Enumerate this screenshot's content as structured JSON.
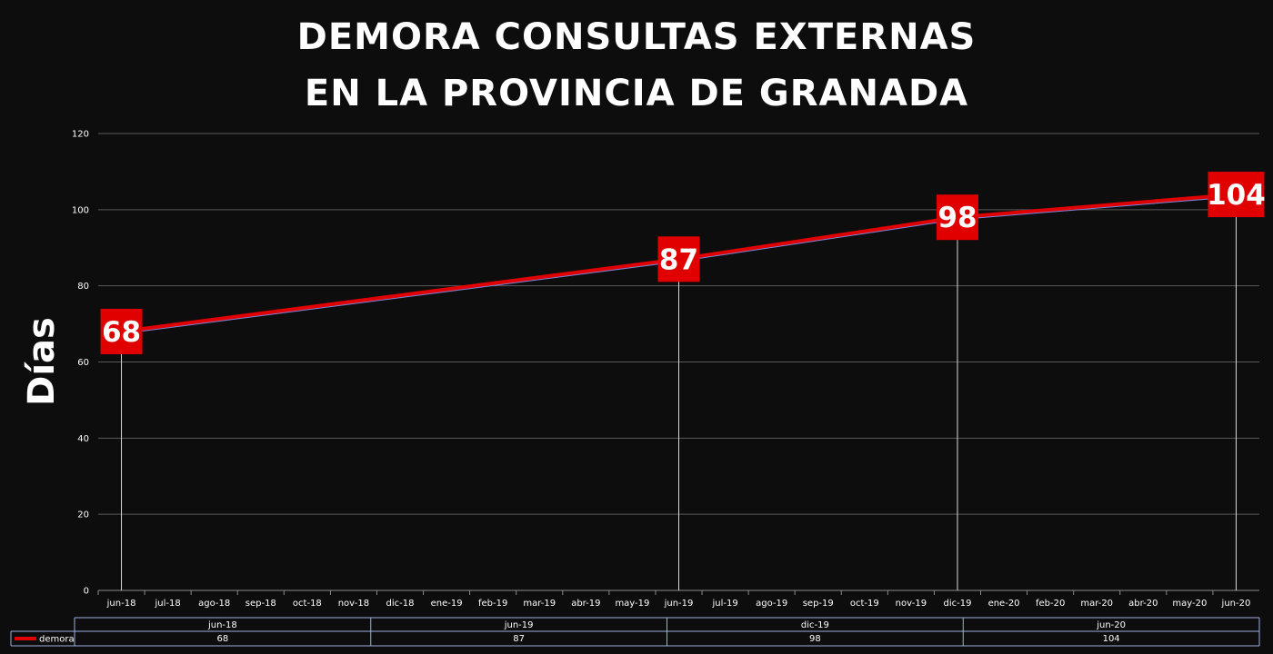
{
  "chart_data": {
    "type": "line",
    "title_line1": "DEMORA CONSULTAS EXTERNAS",
    "title_line2": "EN LA PROVINCIA DE GRANADA",
    "ylabel": "Días",
    "ylim": [
      0,
      120
    ],
    "yticks": [
      0,
      20,
      40,
      60,
      80,
      100,
      120
    ],
    "grid": true,
    "categories": [
      "jun-18",
      "jul-18",
      "ago-18",
      "sep-18",
      "oct-18",
      "nov-18",
      "dic-18",
      "ene-19",
      "feb-19",
      "mar-19",
      "abr-19",
      "may-19",
      "jun-19",
      "jul-19",
      "ago-19",
      "sep-19",
      "oct-19",
      "nov-19",
      "dic-19",
      "ene-20",
      "feb-20",
      "mar-20",
      "abr-20",
      "may-20",
      "jun-20"
    ],
    "series": [
      {
        "name": "demora",
        "color": "#e00000",
        "points": [
          {
            "x": "jun-18",
            "y": 68
          },
          {
            "x": "jun-19",
            "y": 87
          },
          {
            "x": "dic-19",
            "y": 98
          },
          {
            "x": "jun-20",
            "y": 104
          }
        ]
      }
    ],
    "data_table": {
      "headers": [
        "jun-18",
        "jun-19",
        "dic-19",
        "jun-20"
      ],
      "row_label": "demora",
      "values": [
        "68",
        "87",
        "98",
        "104"
      ]
    }
  }
}
